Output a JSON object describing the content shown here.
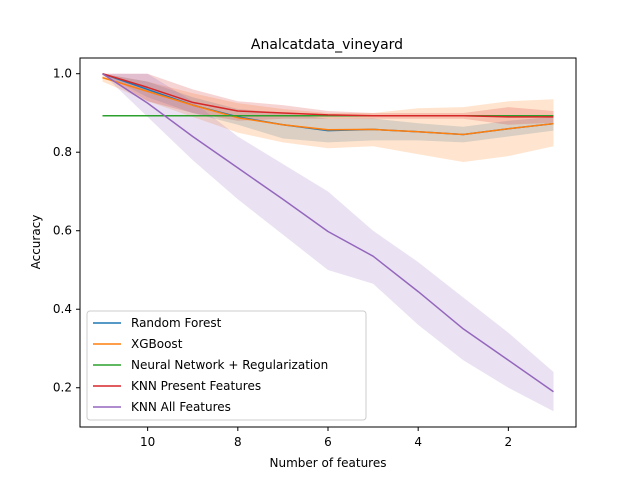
{
  "chart_data": {
    "type": "line",
    "title": "Analcatdata_vineyard",
    "xlabel": "Number of features",
    "ylabel": "Accuracy",
    "x": [
      11,
      10,
      9,
      8,
      7,
      6,
      5,
      4,
      3,
      2,
      1
    ],
    "x_ticks": [
      10,
      8,
      6,
      4,
      2
    ],
    "y_ticks": [
      0.2,
      0.4,
      0.6,
      0.8,
      1.0
    ],
    "y_tick_labels": [
      "0.2",
      "0.4",
      "0.6",
      "0.8",
      "1.0"
    ],
    "xlim": [
      11.5,
      0.5
    ],
    "ylim": [
      0.1,
      1.04
    ],
    "x_reversed": true,
    "legend_position": "lower-left",
    "grid": false,
    "series": [
      {
        "name": "Random Forest",
        "color": "#1f77b4",
        "values": [
          1.0,
          0.96,
          0.92,
          0.89,
          0.87,
          0.855,
          0.858,
          0.852,
          0.845,
          0.86,
          0.873
        ],
        "lower": [
          1.0,
          0.94,
          0.9,
          0.87,
          0.835,
          0.825,
          0.83,
          0.83,
          0.825,
          0.84,
          0.855
        ],
        "upper": [
          1.0,
          0.98,
          0.94,
          0.91,
          0.9,
          0.885,
          0.886,
          0.874,
          0.865,
          0.88,
          0.89
        ]
      },
      {
        "name": "XGBoost",
        "color": "#ff7f0e",
        "values": [
          0.99,
          0.955,
          0.92,
          0.888,
          0.87,
          0.857,
          0.858,
          0.852,
          0.845,
          0.86,
          0.873
        ],
        "lower": [
          0.98,
          0.93,
          0.89,
          0.85,
          0.825,
          0.81,
          0.815,
          0.795,
          0.775,
          0.79,
          0.815
        ],
        "upper": [
          1.0,
          0.98,
          0.95,
          0.925,
          0.91,
          0.9,
          0.9,
          0.912,
          0.915,
          0.93,
          0.935
        ]
      },
      {
        "name": "Neural Network + Regularization",
        "color": "#2ca02c",
        "values": [
          0.893,
          0.893,
          0.893,
          0.893,
          0.893,
          0.893,
          0.893,
          0.893,
          0.893,
          0.893,
          0.893
        ],
        "lower": null,
        "upper": null
      },
      {
        "name": "KNN Present Features",
        "color": "#d62728",
        "values": [
          1.0,
          0.965,
          0.927,
          0.905,
          0.9,
          0.895,
          0.893,
          0.893,
          0.893,
          0.89,
          0.89
        ],
        "lower": [
          1.0,
          0.93,
          0.9,
          0.88,
          0.885,
          0.885,
          0.885,
          0.885,
          0.885,
          0.87,
          0.875
        ],
        "upper": [
          1.0,
          1.0,
          0.96,
          0.93,
          0.92,
          0.905,
          0.9,
          0.9,
          0.9,
          0.915,
          0.905
        ]
      },
      {
        "name": "KNN All Features",
        "color": "#9467bd",
        "values": [
          1.0,
          0.925,
          0.84,
          0.76,
          0.68,
          0.598,
          0.535,
          0.445,
          0.35,
          0.27,
          0.19
        ],
        "lower": [
          1.0,
          0.89,
          0.78,
          0.68,
          0.59,
          0.5,
          0.465,
          0.36,
          0.27,
          0.2,
          0.14
        ],
        "upper": [
          1.0,
          1.0,
          0.93,
          0.84,
          0.77,
          0.7,
          0.6,
          0.52,
          0.43,
          0.34,
          0.24
        ]
      }
    ]
  }
}
